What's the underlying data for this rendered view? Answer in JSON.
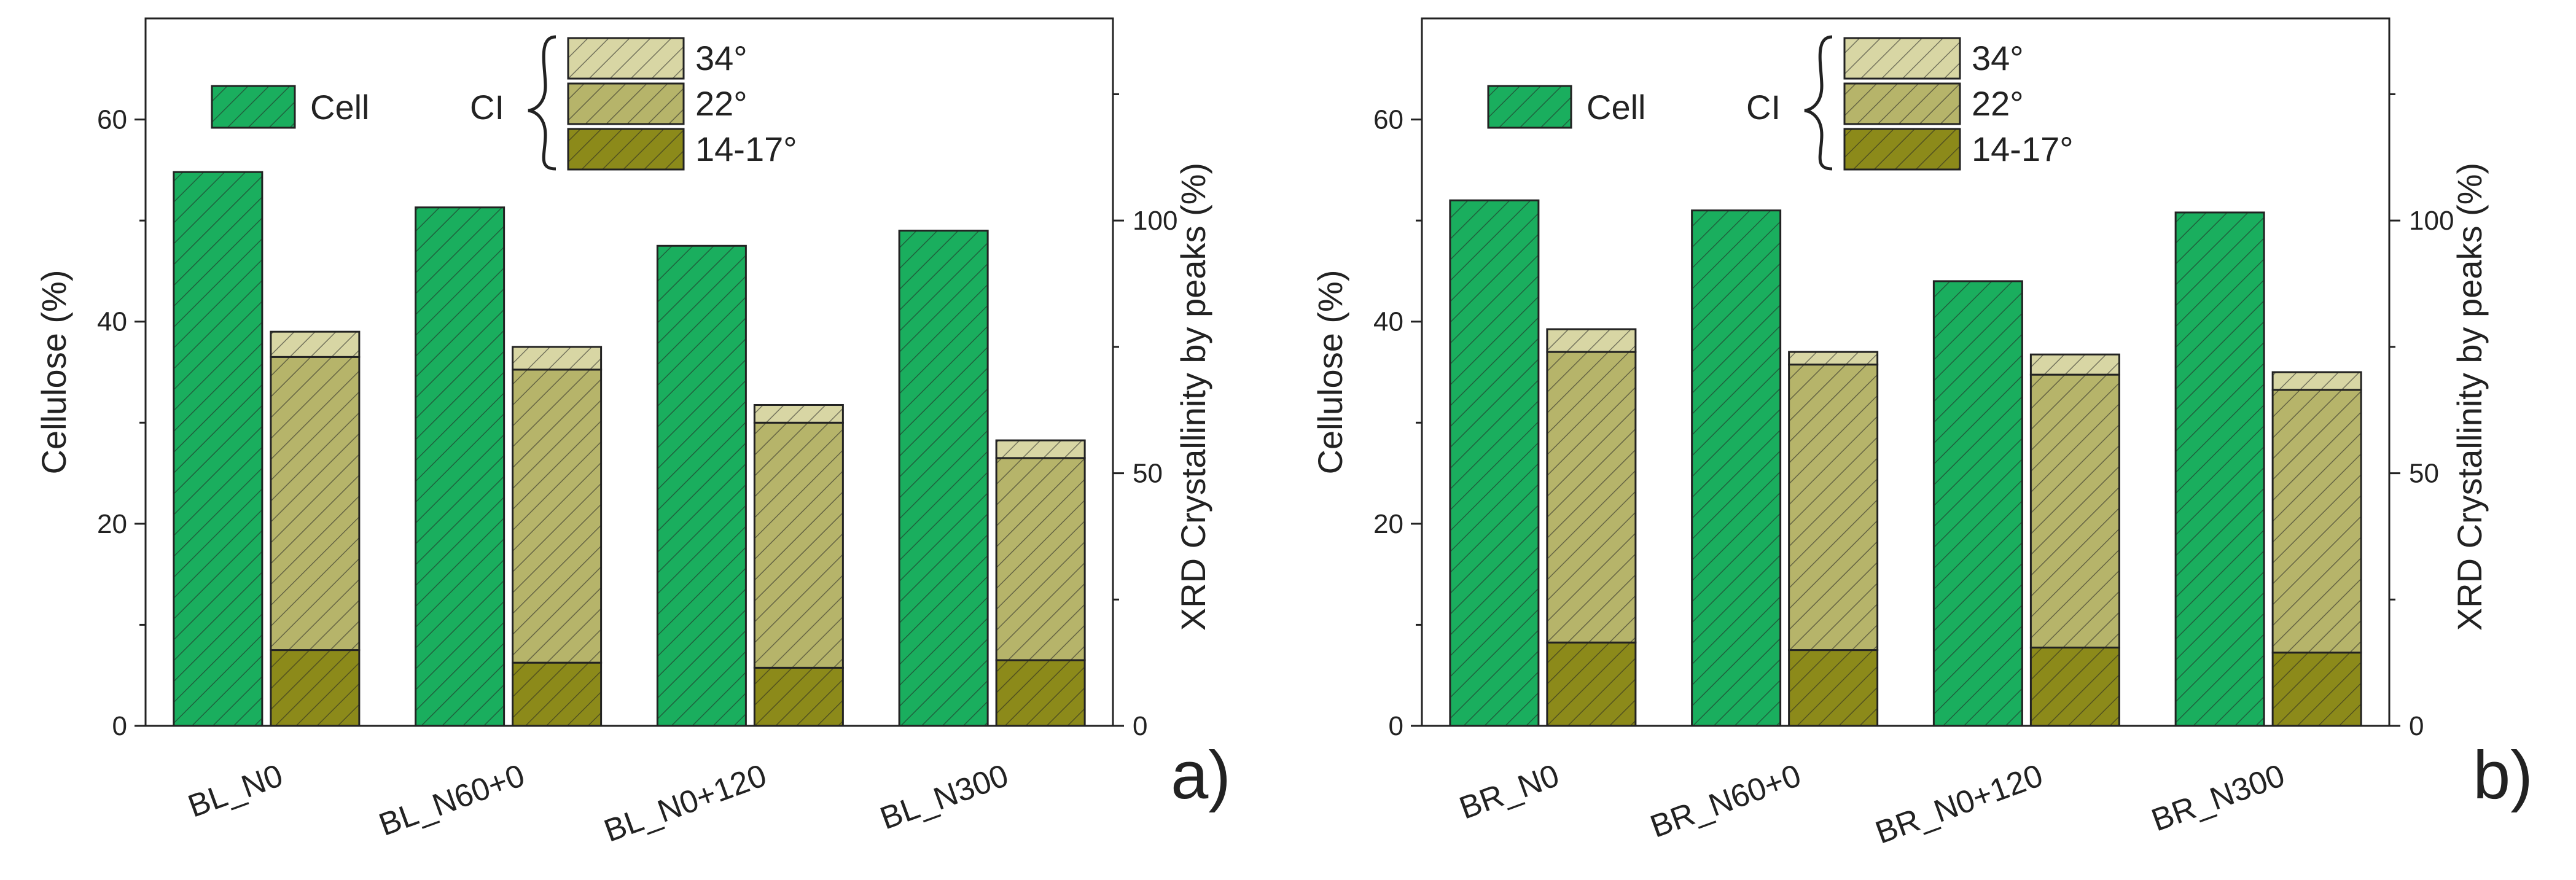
{
  "chart_data": [
    {
      "type": "bar",
      "panel_label": "a)",
      "categories": [
        "BL_N0",
        "BL_N60+0",
        "BL_N0+120",
        "BL_N300"
      ],
      "left_axis": {
        "label": "Cellulose (%)",
        "ylim": [
          0,
          70
        ],
        "ticks": [
          0,
          20,
          40,
          60
        ]
      },
      "right_axis": {
        "label": "XRD Crystallinity by peaks (%)",
        "ylim": [
          0,
          140
        ],
        "ticks": [
          0,
          50,
          100
        ]
      },
      "series": [
        {
          "name": "Cell",
          "axis": "left",
          "stack": "cell",
          "color": "#1aae5e",
          "values": [
            54.8,
            51.3,
            47.5,
            49.0
          ]
        },
        {
          "name": "14-17°",
          "axis": "right",
          "stack": "CI",
          "color": "#8c8a1a",
          "values": [
            15.0,
            12.5,
            11.5,
            13.0
          ]
        },
        {
          "name": "22°",
          "axis": "right",
          "stack": "CI",
          "color": "#b6b46a",
          "values": [
            58.0,
            58.0,
            48.5,
            40.0
          ]
        },
        {
          "name": "34°",
          "axis": "right",
          "stack": "CI",
          "color": "#d8d6a4",
          "values": [
            5.0,
            4.5,
            3.5,
            3.5
          ]
        }
      ],
      "legend": {
        "placement": "top-left",
        "group_label": "CI"
      },
      "grid": false
    },
    {
      "type": "bar",
      "panel_label": "b)",
      "categories": [
        "BR_N0",
        "BR_N60+0",
        "BR_N0+120",
        "BR_N300"
      ],
      "left_axis": {
        "label": "Cellulose (%)",
        "ylim": [
          0,
          70
        ],
        "ticks": [
          0,
          20,
          40,
          60
        ]
      },
      "right_axis": {
        "label": "XRD Crystallinity by peaks (%)",
        "ylim": [
          0,
          140
        ],
        "ticks": [
          0,
          50,
          100
        ]
      },
      "series": [
        {
          "name": "Cell",
          "axis": "left",
          "stack": "cell",
          "color": "#1aae5e",
          "values": [
            52.0,
            51.0,
            44.0,
            50.8
          ]
        },
        {
          "name": "14-17°",
          "axis": "right",
          "stack": "CI",
          "color": "#8c8a1a",
          "values": [
            16.5,
            15.0,
            15.5,
            14.5
          ]
        },
        {
          "name": "22°",
          "axis": "right",
          "stack": "CI",
          "color": "#b6b46a",
          "values": [
            57.5,
            56.5,
            54.0,
            52.0
          ]
        },
        {
          "name": "34°",
          "axis": "right",
          "stack": "CI",
          "color": "#d8d6a4",
          "values": [
            4.5,
            2.5,
            4.0,
            3.5
          ]
        }
      ],
      "legend": {
        "placement": "top-left",
        "group_label": "CI"
      },
      "grid": false
    }
  ]
}
